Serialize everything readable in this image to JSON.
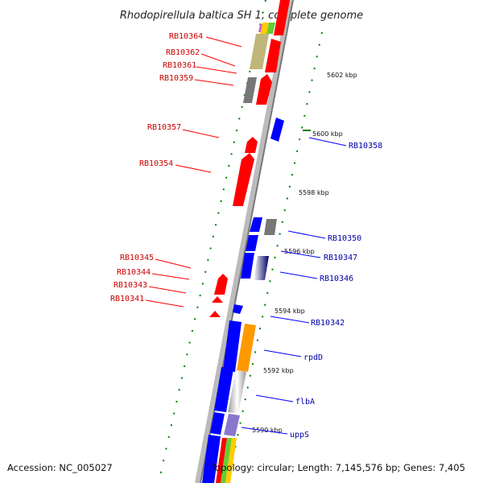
{
  "title": "Rhodopirellula baltica SH 1, complete genome",
  "footer": {
    "accession": "Accession: NC_005027",
    "topology": "Topology: circular; Length: 7,145,576 bp; Genes: 7,405"
  },
  "scale_labels": [
    "5602 kbp",
    "5600 kbp",
    "5598 kbp",
    "5596 kbp",
    "5594 kbp",
    "5592 kbp",
    "5590 kbp"
  ],
  "left_gene_labels": [
    "RB10364",
    "RB10362",
    "RB10361",
    "RB10359",
    "RB10357",
    "RB10354",
    "RB10345",
    "RB10344",
    "RB10343",
    "RB10341"
  ],
  "right_gene_labels": [
    "RB10358",
    "RB10350",
    "RB10347",
    "RB10346",
    "RB10342",
    "rpdD",
    "flbA",
    "uppS"
  ],
  "colors": {
    "forward_strand": "#ff0000",
    "reverse_strand": "#0000ff",
    "rrna_or_other": "#808080",
    "tick_marks": "#008000",
    "left_labels": "#cc0000",
    "right_labels": "#0000aa"
  }
}
